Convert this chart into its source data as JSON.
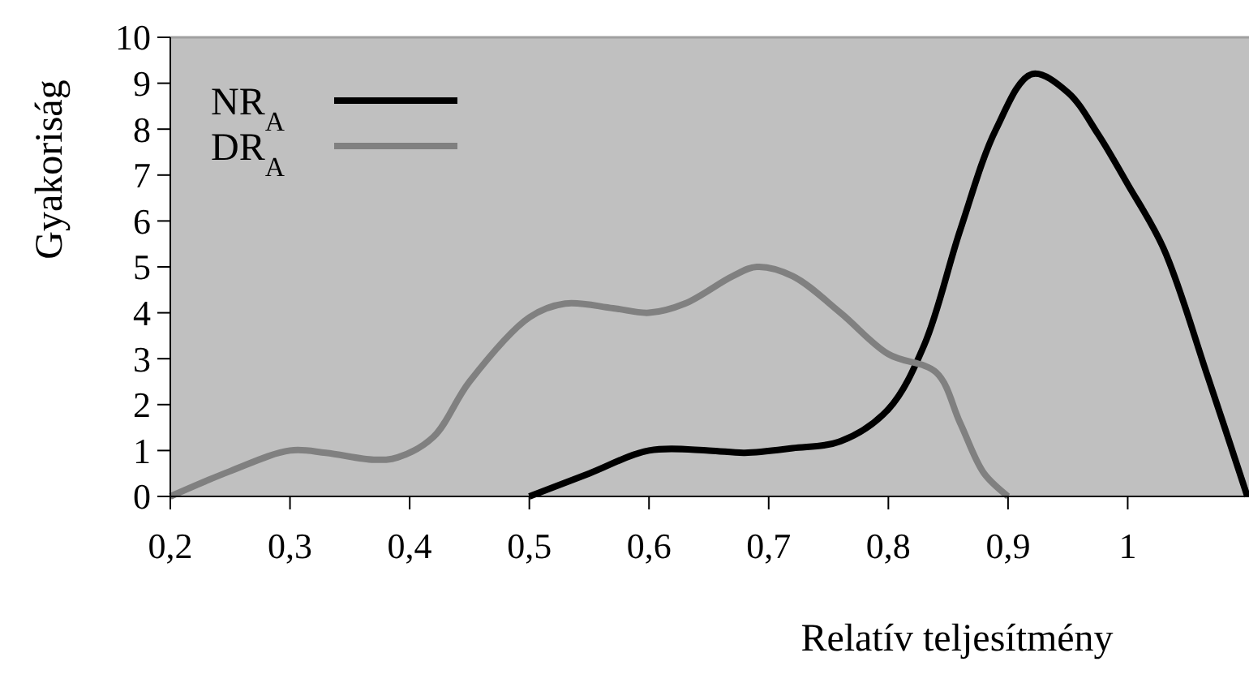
{
  "chart_data": {
    "type": "line",
    "xlabel": "Relatív teljesítmény",
    "ylabel": "Gyakoriság",
    "xlim": [
      0.2,
      1.1
    ],
    "xticks": [
      {
        "value": 0.2,
        "label": "0,2"
      },
      {
        "value": 0.3,
        "label": "0,3"
      },
      {
        "value": 0.4,
        "label": "0,4"
      },
      {
        "value": 0.5,
        "label": "0,5"
      },
      {
        "value": 0.6,
        "label": "0,6"
      },
      {
        "value": 0.7,
        "label": "0,7"
      },
      {
        "value": 0.8,
        "label": "0,8"
      },
      {
        "value": 0.9,
        "label": "0,9"
      },
      {
        "value": 1,
        "label": "1"
      }
    ],
    "ylim": [
      0,
      10
    ],
    "yticks": [
      0,
      1,
      2,
      3,
      4,
      5,
      6,
      7,
      8,
      9,
      10
    ],
    "grid": false,
    "legend": "top left",
    "line_style": "solid",
    "series": [
      {
        "name": "NR$_{A}$",
        "color": "#000000",
        "x": [
          0.5,
          0.55,
          0.6,
          0.65,
          0.68,
          0.72,
          0.76,
          0.8,
          0.83,
          0.86,
          0.89,
          0.92,
          0.95,
          0.975,
          1.0,
          1.03,
          1.067,
          1.1
        ],
        "values": [
          0,
          0.5,
          1.0,
          1.0,
          0.95,
          1.05,
          1.2,
          1.9,
          3.3,
          5.8,
          8.0,
          9.2,
          8.8,
          7.9,
          6.8,
          5.4,
          2.6,
          0
        ]
      },
      {
        "name": "DR$_{A}$",
        "color": "#808080",
        "x": [
          0.2,
          0.25,
          0.3,
          0.33,
          0.37,
          0.39,
          0.42,
          0.45,
          0.5,
          0.53,
          0.57,
          0.6,
          0.63,
          0.67,
          0.69,
          0.72,
          0.76,
          0.8,
          0.84,
          0.86,
          0.88,
          0.9
        ],
        "values": [
          0,
          0.55,
          1.0,
          0.95,
          0.8,
          0.85,
          1.3,
          2.5,
          3.9,
          4.2,
          4.1,
          4.0,
          4.2,
          4.8,
          5.0,
          4.8,
          4.0,
          3.1,
          2.7,
          1.6,
          0.5,
          0
        ]
      }
    ]
  }
}
